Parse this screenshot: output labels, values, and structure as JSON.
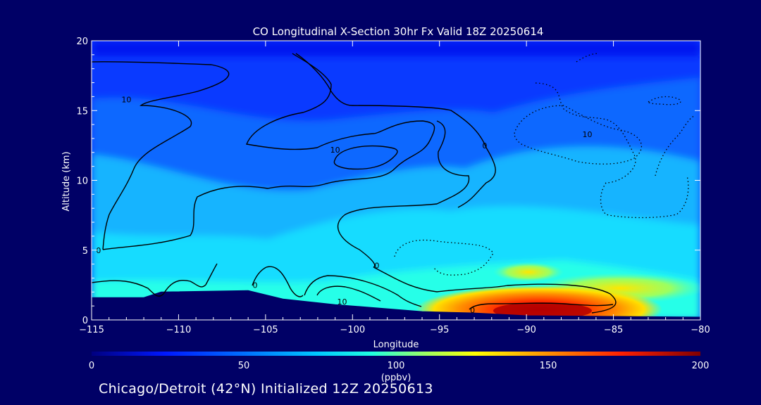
{
  "chart_data": {
    "type": "heatmap",
    "title": "CO Longitudinal X-Section 30hr  Fx Valid 18Z 20250614",
    "xlabel": "Longitude",
    "ylabel": "Altitude (km)",
    "xlim": [
      -115,
      -80
    ],
    "ylim": [
      0,
      20
    ],
    "x_ticks": [
      -115,
      -110,
      -105,
      -100,
      -95,
      -90,
      -85,
      -80
    ],
    "x_tick_labels": [
      "−115",
      "−110",
      "−105",
      "−100",
      "−95",
      "−90",
      "−85",
      "−80"
    ],
    "y_ticks": [
      0,
      5,
      10,
      15,
      20
    ],
    "y_tick_labels": [
      "0",
      "5",
      "10",
      "15",
      "20"
    ],
    "colorbar": {
      "min": 0,
      "max": 200,
      "units": "(ppbv)",
      "ticks": [
        0,
        50,
        100,
        150,
        200
      ],
      "tick_labels": [
        "0",
        "50",
        "100",
        "150",
        "200"
      ]
    },
    "contour_labels": [
      {
        "text": "10",
        "lon": -113.0,
        "alt": 15.8
      },
      {
        "text": "10",
        "lon": -101.0,
        "alt": 12.2
      },
      {
        "text": "10",
        "lon": -86.5,
        "alt": 13.3
      },
      {
        "text": "0",
        "lon": -92.4,
        "alt": 12.5
      },
      {
        "text": "0",
        "lon": -114.6,
        "alt": 5.0
      },
      {
        "text": "0",
        "lon": -105.6,
        "alt": 2.5
      },
      {
        "text": "0",
        "lon": -98.6,
        "alt": 3.9
      },
      {
        "text": "10",
        "lon": -100.6,
        "alt": 1.3
      },
      {
        "text": "0",
        "lon": -93.1,
        "alt": 0.7
      }
    ],
    "terrain": [
      [
        -115,
        1.6
      ],
      [
        -112,
        1.6
      ],
      [
        -111,
        2.0
      ],
      [
        -106,
        2.1
      ],
      [
        -104,
        1.5
      ],
      [
        -101,
        1.1
      ],
      [
        -96,
        0.6
      ],
      [
        -93,
        0.5
      ],
      [
        -90,
        0.3
      ],
      [
        -80,
        0.2
      ]
    ],
    "plume_peak": {
      "lon": -88.5,
      "alt": 0.6,
      "ppbv": 195
    }
  },
  "footer": "Chicago/Detroit (42°N) Initialized 12Z 20250613"
}
